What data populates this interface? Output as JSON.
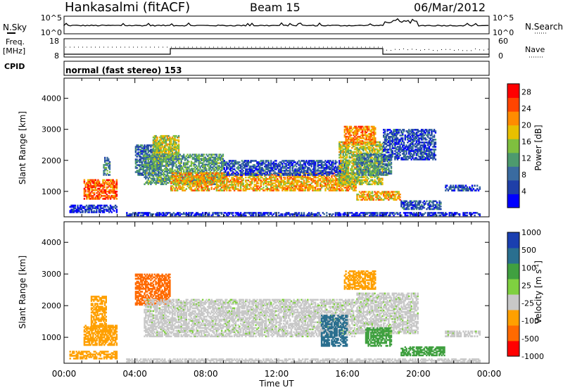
{
  "header": {
    "station": "Hankasalmi (fitACF)",
    "beam": "Beam 15",
    "date": "06/Mar/2012"
  },
  "noise_panel": {
    "left_label": "N.Sky",
    "right_label": "N.Search",
    "ticks_left": [
      "10^5",
      "10^0"
    ],
    "ticks_right": [
      "10^5",
      "10^0"
    ]
  },
  "freq_panel": {
    "left_label_1": "Freq.",
    "left_label_2": "[MHz]",
    "right_label": "Nave",
    "ticks_left": [
      "18",
      "8"
    ],
    "ticks_right": [
      "60",
      "0"
    ]
  },
  "cpid_panel": {
    "label": "CPID",
    "text": "normal (fast stereo) 153"
  },
  "colors": {
    "power": [
      "#0000ff",
      "#1f3fa8",
      "#3a6ba0",
      "#4d9a6e",
      "#7fbf3f",
      "#e8c000",
      "#ff8c00",
      "#ff4500",
      "#ff0000"
    ],
    "velocity": [
      "#ff0000",
      "#ff5a00",
      "#ff9a00",
      "#ffc800",
      "#c8c8c8",
      "#c8c8c8",
      "#7fd040",
      "#40a040",
      "#2a7a7a",
      "#1a4fa0",
      "#1040b0"
    ]
  },
  "chart_data": [
    {
      "type": "heatmap",
      "name": "power-panel",
      "title": "",
      "xlabel": "Time UT",
      "ylabel": "Slant Range [km]",
      "colorbar_label": "Power [dB]",
      "x_ticks": [
        "00:00",
        "04:00",
        "08:00",
        "12:00",
        "16:00",
        "20:00",
        "00:00"
      ],
      "xlim_hours": [
        0,
        24
      ],
      "ylim_km": [
        180,
        4650
      ],
      "y_ticks": [
        1000,
        2000,
        3000,
        4000
      ],
      "colorbar_ticks": [
        4,
        8,
        12,
        16,
        20,
        24,
        28
      ],
      "colorbar_range": [
        0,
        30
      ],
      "scatter_regions": [
        {
          "t0": 0.3,
          "t1": 3.0,
          "r0": 300,
          "r1": 560,
          "value": 4
        },
        {
          "t0": 1.1,
          "t1": 3.0,
          "r0": 730,
          "r1": 1380,
          "value": 24
        },
        {
          "t0": 2.2,
          "t1": 2.6,
          "r0": 1500,
          "r1": 2100,
          "value": 10
        },
        {
          "t0": 4.0,
          "t1": 5.5,
          "r0": 1500,
          "r1": 2500,
          "value": 8
        },
        {
          "t0": 5.0,
          "t1": 6.5,
          "r0": 2000,
          "r1": 2800,
          "value": 16
        },
        {
          "t0": 4.5,
          "t1": 9.0,
          "r0": 1200,
          "r1": 2200,
          "value": 12
        },
        {
          "t0": 6.0,
          "t1": 16.5,
          "r0": 1000,
          "r1": 1600,
          "value": 20
        },
        {
          "t0": 9.0,
          "t1": 16.0,
          "r0": 1500,
          "r1": 2000,
          "value": 6
        },
        {
          "t0": 15.5,
          "t1": 18.0,
          "r0": 1200,
          "r1": 2600,
          "value": 16
        },
        {
          "t0": 16.5,
          "t1": 18.5,
          "r0": 1500,
          "r1": 2200,
          "value": 10
        },
        {
          "t0": 15.8,
          "t1": 17.6,
          "r0": 2500,
          "r1": 3100,
          "value": 22
        },
        {
          "t0": 16.5,
          "t1": 19.0,
          "r0": 700,
          "r1": 1000,
          "value": 20
        },
        {
          "t0": 18.0,
          "t1": 21.0,
          "r0": 2000,
          "r1": 3000,
          "value": 6
        },
        {
          "t0": 19.0,
          "t1": 21.3,
          "r0": 400,
          "r1": 700,
          "value": 6
        },
        {
          "t0": 21.5,
          "t1": 23.5,
          "r0": 1000,
          "r1": 1200,
          "value": 6
        },
        {
          "t0": 3.5,
          "t1": 23.5,
          "r0": 200,
          "r1": 320,
          "value": 4
        }
      ]
    },
    {
      "type": "heatmap",
      "name": "velocity-panel",
      "title": "",
      "xlabel": "Time UT",
      "ylabel": "Slant Range [km]",
      "colorbar_label": "Velocity [m s^-1]",
      "x_ticks": [
        "00:00",
        "04:00",
        "08:00",
        "12:00",
        "16:00",
        "20:00",
        "00:00"
      ],
      "xlim_hours": [
        0,
        24
      ],
      "ylim_km": [
        180,
        4650
      ],
      "y_ticks": [
        1000,
        2000,
        3000,
        4000
      ],
      "colorbar_ticks": [
        "-1000",
        "-500",
        "-100",
        "-25",
        "25",
        "100",
        "500",
        "1000"
      ],
      "scatter_regions": [
        {
          "t0": 0.3,
          "t1": 3.0,
          "r0": 300,
          "r1": 560,
          "value": -300
        },
        {
          "t0": 1.1,
          "t1": 3.0,
          "r0": 730,
          "r1": 1380,
          "value": -300
        },
        {
          "t0": 1.5,
          "t1": 2.4,
          "r0": 1300,
          "r1": 2300,
          "value": -150
        },
        {
          "t0": 4.0,
          "t1": 6.0,
          "r0": 2000,
          "r1": 3000,
          "value": -700
        },
        {
          "t0": 4.5,
          "t1": 16.5,
          "r0": 1000,
          "r1": 2200,
          "value": 0
        },
        {
          "t0": 14.5,
          "t1": 16.0,
          "r0": 700,
          "r1": 1700,
          "value": 900
        },
        {
          "t0": 15.8,
          "t1": 17.6,
          "r0": 2500,
          "r1": 3100,
          "value": -300
        },
        {
          "t0": 16.5,
          "t1": 20.0,
          "r0": 1100,
          "r1": 2400,
          "value": 0
        },
        {
          "t0": 17.0,
          "t1": 18.5,
          "r0": 700,
          "r1": 1300,
          "value": 200
        },
        {
          "t0": 19.0,
          "t1": 21.5,
          "r0": 400,
          "r1": 700,
          "value": 200
        },
        {
          "t0": 21.5,
          "t1": 23.5,
          "r0": 1000,
          "r1": 1200,
          "value": 0
        },
        {
          "t0": 3.5,
          "t1": 23.5,
          "r0": 200,
          "r1": 320,
          "value": -60
        }
      ]
    }
  ]
}
